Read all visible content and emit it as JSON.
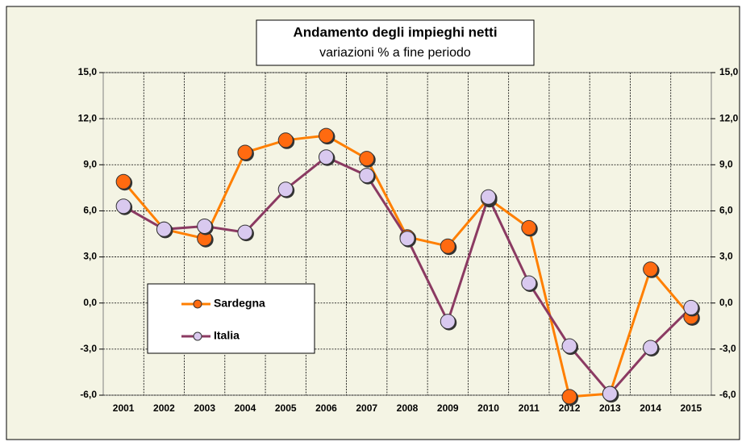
{
  "chart_data": {
    "type": "line",
    "title": "Andamento degli impieghi netti",
    "subtitle": "variazioni % a fine periodo",
    "categories": [
      "2001",
      "2002",
      "2003",
      "2004",
      "2005",
      "2006",
      "2007",
      "2008",
      "2009",
      "2010",
      "2011",
      "2012",
      "2013",
      "2014",
      "2015"
    ],
    "series": [
      {
        "name": "Sardegna",
        "color": "#ff7f00",
        "marker_color": "#ff6a10",
        "values": [
          7.9,
          4.8,
          4.2,
          9.8,
          10.6,
          10.9,
          9.4,
          4.3,
          3.7,
          6.8,
          4.9,
          -6.1,
          -5.9,
          2.2,
          -0.9
        ]
      },
      {
        "name": "Italia",
        "color": "#8b3a62",
        "marker_color": "#d9c9ef",
        "values": [
          6.3,
          4.8,
          5.0,
          4.6,
          7.4,
          9.5,
          8.3,
          4.2,
          -1.2,
          6.9,
          1.3,
          -2.8,
          -5.9,
          -2.9,
          -0.3
        ]
      }
    ],
    "ylim": [
      -6,
      15
    ],
    "yticks": [
      {
        "value": -6,
        "label": "-6,0"
      },
      {
        "value": -3,
        "label": "-3,0"
      },
      {
        "value": 0,
        "label": "0,0"
      },
      {
        "value": 3,
        "label": "3,0"
      },
      {
        "value": 6,
        "label": "6,0"
      },
      {
        "value": 9,
        "label": "9,0"
      },
      {
        "value": 12,
        "label": "12,0"
      },
      {
        "value": 15,
        "label": "15,0"
      }
    ],
    "y2lim": [
      -6,
      15
    ],
    "y2ticks": [
      {
        "value": -6,
        "label": "-6,0"
      },
      {
        "value": -3,
        "label": "-3,0"
      },
      {
        "value": 0,
        "label": "0,0"
      },
      {
        "value": 3,
        "label": "3,0"
      },
      {
        "value": 6,
        "label": "6,0"
      },
      {
        "value": 9,
        "label": "9,0"
      },
      {
        "value": 12,
        "label": "12,0"
      },
      {
        "value": 15,
        "label": "15,0"
      }
    ],
    "grid": true,
    "legend": "lower left"
  }
}
